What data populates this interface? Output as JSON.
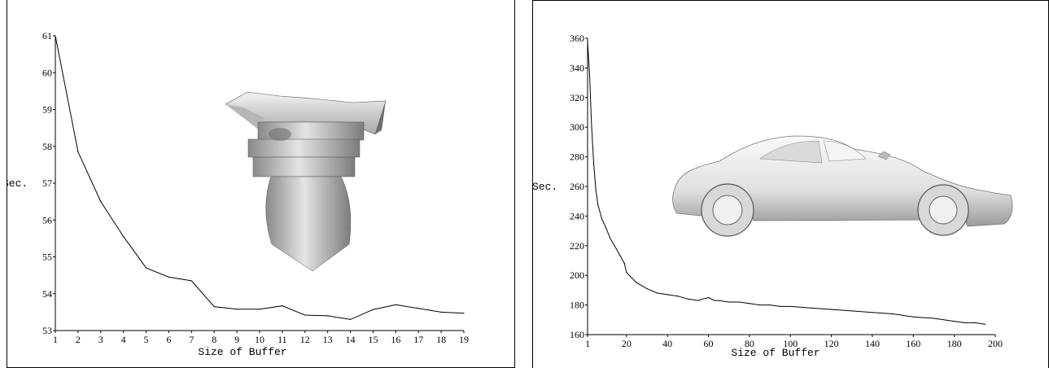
{
  "chart_data": [
    {
      "type": "line",
      "xlabel": "Size of Buffer",
      "ylabel": "Sec.",
      "xlim": [
        1,
        19
      ],
      "ylim": [
        53,
        61
      ],
      "x_ticks": [
        "1",
        "2",
        "3",
        "4",
        "5",
        "6",
        "7",
        "8",
        "9",
        "10",
        "11",
        "12",
        "13",
        "14",
        "15",
        "16",
        "17",
        "18",
        "19"
      ],
      "y_ticks": [
        "53",
        "54",
        "55",
        "56",
        "57",
        "58",
        "59",
        "60",
        "61"
      ],
      "x": [
        1,
        2,
        3,
        4,
        5,
        6,
        7,
        8,
        9,
        10,
        11,
        12,
        13,
        14,
        15,
        16,
        17,
        18,
        19
      ],
      "y": [
        61,
        57.85,
        56.5,
        55.55,
        54.7,
        54.45,
        54.35,
        53.65,
        53.58,
        53.58,
        53.67,
        53.42,
        53.4,
        53.3,
        53.57,
        53.7,
        53.6,
        53.5,
        53.47
      ],
      "grid": false,
      "inset_image": "3D scanned column capital model (gray point-rendered)"
    },
    {
      "type": "line",
      "xlabel": "Size of Buffer",
      "ylabel": "Sec.",
      "xlim": [
        1,
        200
      ],
      "ylim": [
        160,
        360
      ],
      "x_ticks": [
        "1",
        "20",
        "40",
        "60",
        "80",
        "100",
        "120",
        "140",
        "160",
        "180",
        "200"
      ],
      "y_ticks": [
        "160",
        "180",
        "200",
        "220",
        "240",
        "260",
        "280",
        "300",
        "320",
        "340",
        "360"
      ],
      "x": [
        1,
        2,
        3,
        4,
        5,
        6,
        8,
        10,
        12,
        15,
        17,
        19,
        20,
        22,
        25,
        30,
        35,
        40,
        45,
        50,
        55,
        57,
        60,
        63,
        65,
        70,
        75,
        80,
        85,
        90,
        95,
        100,
        110,
        120,
        130,
        140,
        150,
        160,
        170,
        180,
        185,
        190,
        195
      ],
      "y": [
        358,
        335,
        300,
        275,
        258,
        248,
        238,
        232,
        225,
        218,
        213,
        208,
        202,
        199,
        195,
        191,
        188,
        187,
        186,
        184,
        183,
        184,
        185,
        183,
        183,
        182,
        182,
        181,
        180,
        180,
        179,
        179,
        178,
        177,
        176,
        175,
        174,
        172,
        171,
        169,
        168,
        168,
        167
      ],
      "grid": false,
      "inset_image": "3D scanned sports car model (gray point-rendered)"
    }
  ]
}
